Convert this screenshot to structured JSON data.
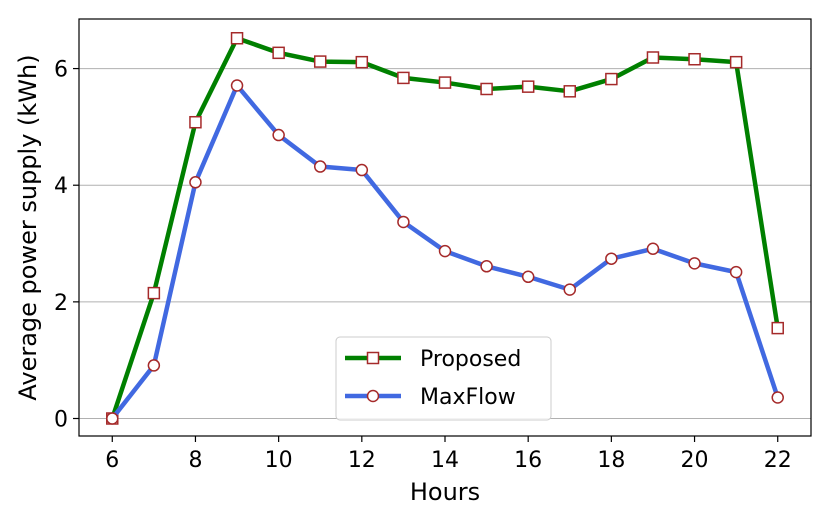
{
  "chart_data": {
    "type": "line",
    "xlabel": "Hours",
    "ylabel": "Average power supply (kWh)",
    "xlim": [
      5.2,
      22.8
    ],
    "ylim": [
      -0.3,
      6.85
    ],
    "xticks": [
      6,
      8,
      10,
      12,
      14,
      16,
      18,
      20,
      22
    ],
    "yticks": [
      0,
      2,
      4,
      6
    ],
    "grid": "horizontal",
    "legend_position": "lower-center",
    "x": [
      6,
      7,
      8,
      9,
      10,
      11,
      12,
      13,
      14,
      15,
      16,
      17,
      18,
      19,
      20,
      21,
      22
    ],
    "series": [
      {
        "name": "Proposed",
        "color": "#008000",
        "marker": "square",
        "marker_edge": "#a52a2a",
        "values": [
          0.0,
          2.15,
          5.08,
          6.52,
          6.27,
          6.12,
          6.11,
          5.84,
          5.76,
          5.65,
          5.69,
          5.61,
          5.82,
          6.19,
          6.16,
          6.11,
          1.55
        ]
      },
      {
        "name": "MaxFlow",
        "color": "#4169e1",
        "marker": "circle",
        "marker_edge": "#a52a2a",
        "values": [
          0.0,
          0.91,
          4.05,
          5.71,
          4.86,
          4.32,
          4.26,
          3.37,
          2.87,
          2.61,
          2.43,
          2.21,
          2.74,
          2.91,
          2.66,
          2.51,
          0.36
        ]
      }
    ]
  }
}
